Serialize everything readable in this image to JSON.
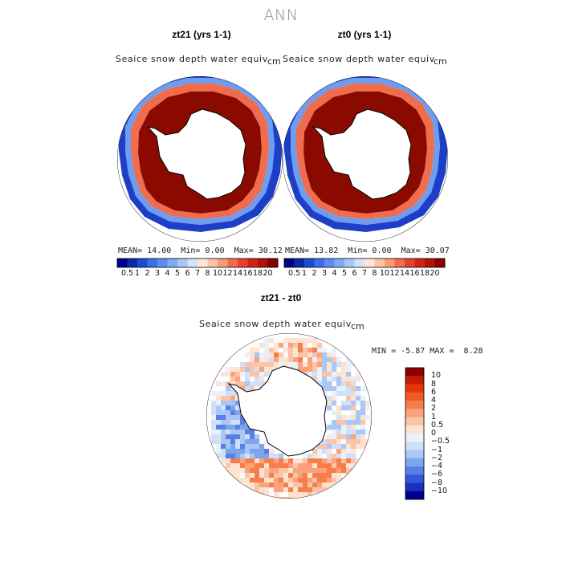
{
  "figure": {
    "title": "ANN",
    "variable": "Seaice snow depth water equiv",
    "units": "cm"
  },
  "panels": [
    {
      "title": "zt21 (yrs 1-1)",
      "stats": {
        "mean_label": "MEAN=",
        "mean": "14.00",
        "min_label": "Min=",
        "min": "0.00",
        "max_label": "Max=",
        "max": "30.12"
      }
    },
    {
      "title": "zt0 (yrs 1-1)",
      "stats": {
        "mean_label": "MEAN=",
        "mean": "13.82",
        "min_label": "Min=",
        "min": "0.00",
        "max_label": "Max=",
        "max": "30.07"
      }
    }
  ],
  "difference": {
    "title": "zt21 - zt0",
    "min_label": "MIN =",
    "min": "-5.87",
    "max_label": "MAX =",
    "max": "8.28"
  },
  "colorbar_abs": {
    "labels": [
      "0.5",
      "1",
      "2",
      "3",
      "4",
      "5",
      "6",
      "7",
      "8",
      "10",
      "12",
      "14",
      "16",
      "18",
      "20"
    ],
    "colors": [
      "#00008b",
      "#0b2aa6",
      "#1e4bd2",
      "#3a6ee8",
      "#5b8def",
      "#7fa9f2",
      "#a7c6f6",
      "#d2e3fb",
      "#ffe6d6",
      "#fcc3a5",
      "#f59b78",
      "#ef6c4c",
      "#e4422c",
      "#cf2516",
      "#b01408",
      "#850000"
    ]
  },
  "colorbar_diff": {
    "labels": [
      "10",
      "8",
      "6",
      "4",
      "2",
      "1",
      "0.5",
      "0",
      "−0.5",
      "−1",
      "−2",
      "−4",
      "−6",
      "−8",
      "−10"
    ],
    "colors": [
      "#8c0000",
      "#c41c04",
      "#e4380c",
      "#f25a24",
      "#f77e4c",
      "#f9a27b",
      "#fbc4a8",
      "#fde3d2",
      "#eaf1fb",
      "#cfe0f8",
      "#a9c6f4",
      "#7fa4ee",
      "#577fe6",
      "#3357d8",
      "#1a2fc2",
      "#00008f"
    ]
  }
}
